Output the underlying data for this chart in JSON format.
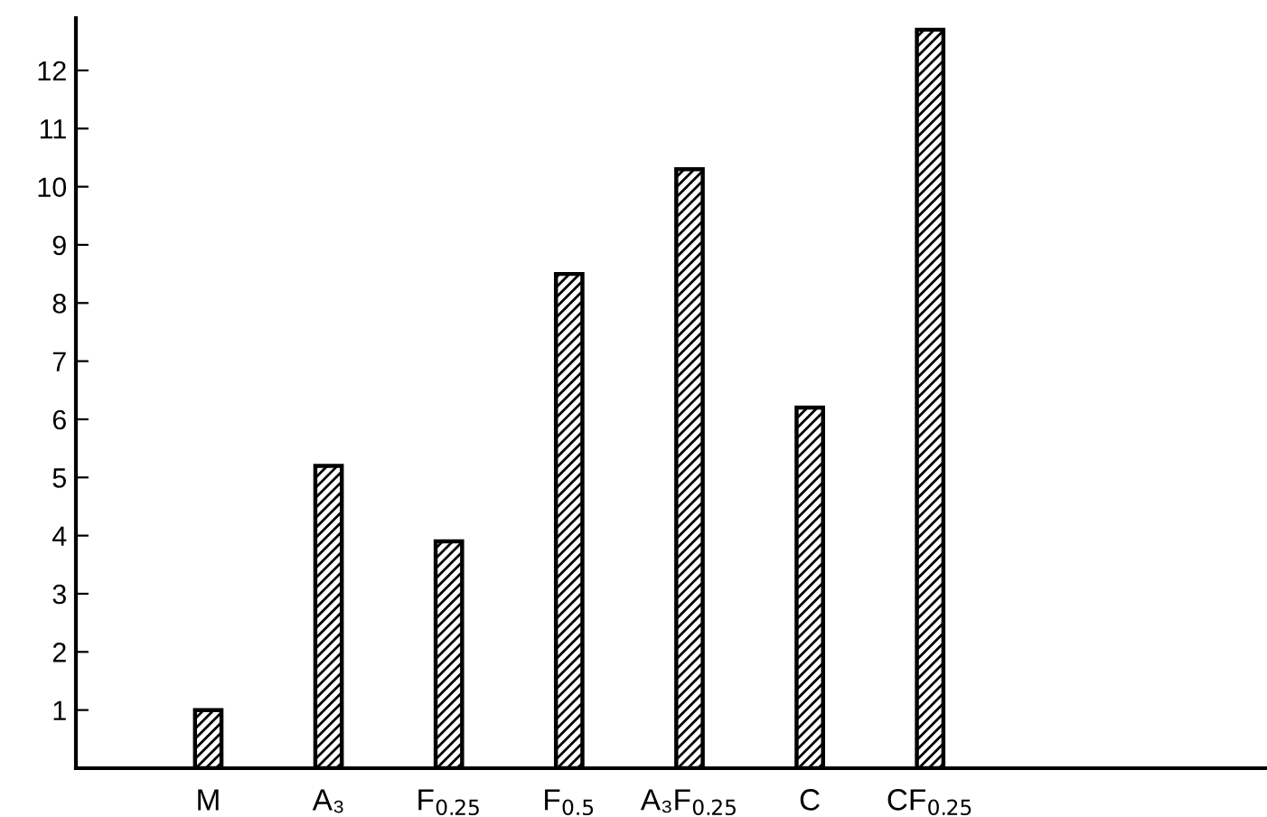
{
  "chart_data": {
    "type": "bar",
    "categories": [
      "M",
      "A₃",
      "F$_{0.25}$",
      "F$_{0.5}$",
      "A₃F$_{0.25}$",
      "C",
      "CF$_{0.25}$"
    ],
    "values": [
      1.0,
      5.2,
      3.9,
      8.5,
      10.3,
      6.2,
      12.7
    ],
    "color": "#000000",
    "ylim": [
      0,
      12.9
    ],
    "yticks": [
      {
        "value": 0,
        "label": null
      },
      1,
      2,
      3,
      4,
      5,
      6,
      7,
      8,
      9,
      10,
      11,
      12
    ],
    "grid": false
  }
}
